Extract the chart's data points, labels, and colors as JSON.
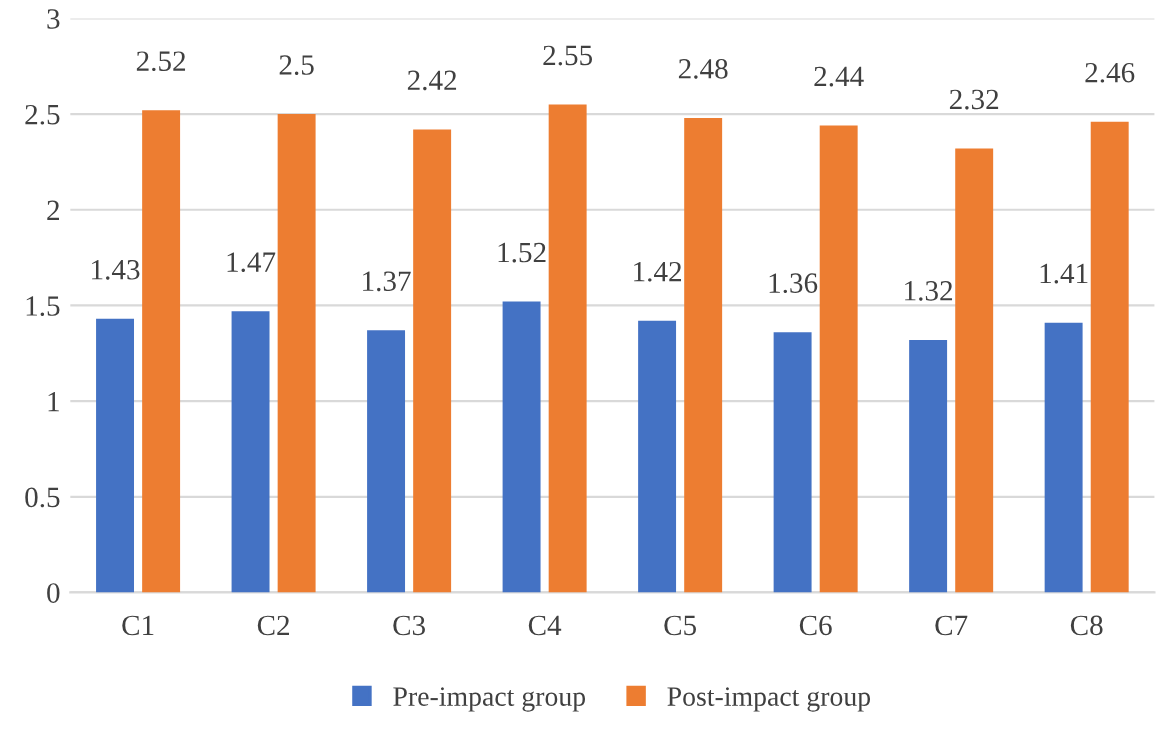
{
  "chart_data": {
    "type": "bar",
    "categories": [
      "C1",
      "C2",
      "C3",
      "C4",
      "C5",
      "C6",
      "C7",
      "C8"
    ],
    "series": [
      {
        "name": "Pre-impact group",
        "color": "#4472c4",
        "values": [
          1.43,
          1.47,
          1.37,
          1.52,
          1.42,
          1.36,
          1.32,
          1.41
        ]
      },
      {
        "name": "Post-impact group",
        "color": "#ed7d31",
        "values": [
          2.52,
          2.5,
          2.42,
          2.55,
          2.48,
          2.44,
          2.32,
          2.46
        ]
      }
    ],
    "ylim": [
      0,
      3
    ],
    "yticks": [
      0,
      0.5,
      1,
      1.5,
      2,
      2.5,
      3
    ],
    "grid": "y",
    "legend": "bottom",
    "data_labels": true
  }
}
